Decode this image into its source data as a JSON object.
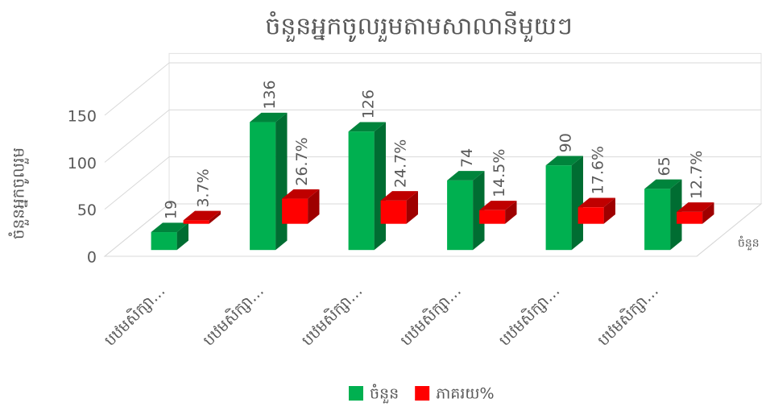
{
  "chart_data": {
    "type": "bar3d",
    "title": "ចំនួនអ្នកចូលរួមតាមសាលានីមួយៗ",
    "y_label": "ចំនួនអ្នកចូលរួម",
    "categories": [
      "បឋមសិក្សា…",
      "បឋមសិក្សា…",
      "បឋមសិក្សា…",
      "បឋមសិក្សា…",
      "បឋមសិក្សា…",
      "បឋមសិក្សា…"
    ],
    "series": [
      {
        "name": "ចំនួន",
        "color": "#00b050",
        "values": [
          19,
          136,
          126,
          74,
          90,
          65
        ]
      },
      {
        "name": "ភាគរយ%",
        "color": "#ff0000",
        "values": [
          3.7,
          26.7,
          24.7,
          14.5,
          17.6,
          12.7
        ],
        "value_labels": [
          "3.7%",
          "26.7%",
          "24.7%",
          "14.5%",
          "17.6%",
          "12.7%"
        ]
      }
    ],
    "ylim": [
      0,
      160
    ],
    "yticks": [
      0,
      50,
      100,
      150
    ],
    "grid": true
  }
}
